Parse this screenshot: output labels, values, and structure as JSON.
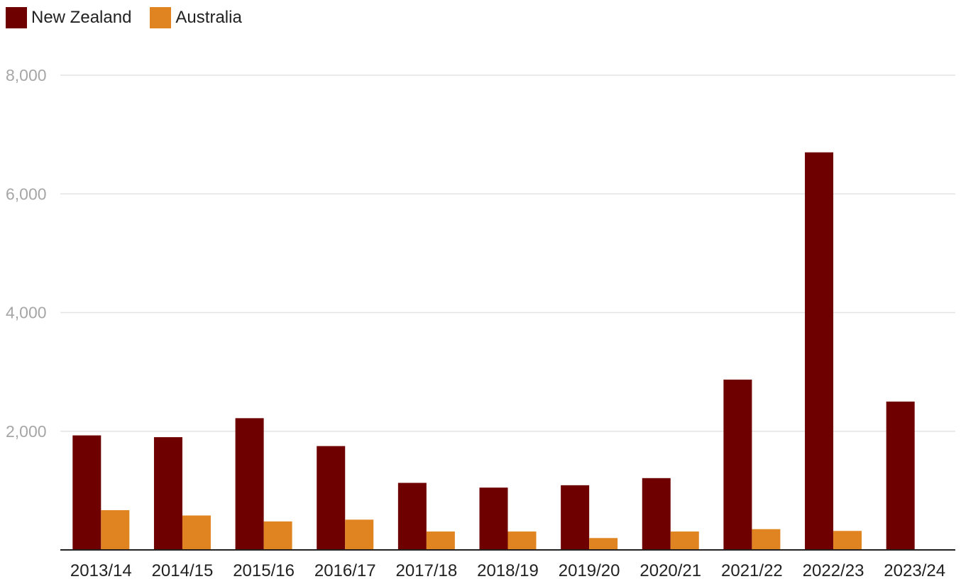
{
  "chart_data": {
    "type": "bar",
    "categories": [
      "2013/14",
      "2014/15",
      "2015/16",
      "2016/17",
      "2017/18",
      "2018/19",
      "2019/20",
      "2020/21",
      "2021/22",
      "2022/23",
      "2023/24"
    ],
    "series": [
      {
        "name": "New Zealand",
        "color": "#6e0000",
        "values": [
          1930,
          1900,
          2220,
          1750,
          1130,
          1050,
          1090,
          1210,
          2870,
          6700,
          2500
        ]
      },
      {
        "name": "Australia",
        "color": "#e08421",
        "values": [
          670,
          580,
          480,
          510,
          310,
          310,
          200,
          310,
          350,
          320,
          null
        ]
      }
    ],
    "yticks": [
      "2,000",
      "4,000",
      "6,000",
      "8,000"
    ],
    "ylim": [
      0,
      8000
    ],
    "grid": true,
    "legend_position": "top-left"
  }
}
